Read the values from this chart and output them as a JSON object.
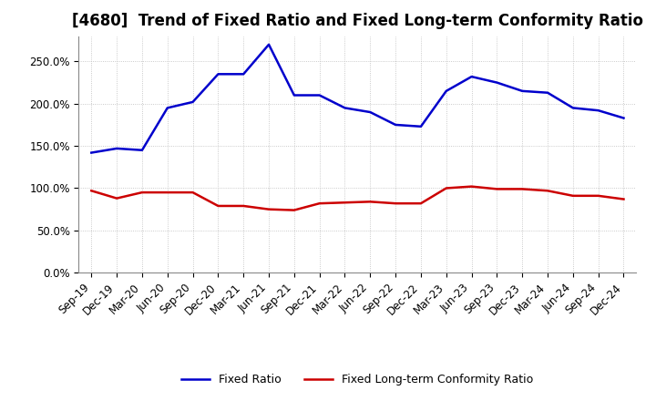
{
  "title": "[4680]  Trend of Fixed Ratio and Fixed Long-term Conformity Ratio",
  "labels": [
    "Sep-19",
    "Dec-19",
    "Mar-20",
    "Jun-20",
    "Sep-20",
    "Dec-20",
    "Mar-21",
    "Jun-21",
    "Sep-21",
    "Dec-21",
    "Mar-22",
    "Jun-22",
    "Sep-22",
    "Dec-22",
    "Mar-23",
    "Jun-23",
    "Sep-23",
    "Dec-23",
    "Mar-24",
    "Jun-24",
    "Sep-24",
    "Dec-24"
  ],
  "fixed_ratio": [
    142,
    147,
    145,
    195,
    202,
    235,
    235,
    270,
    210,
    210,
    195,
    190,
    175,
    173,
    215,
    232,
    225,
    215,
    213,
    195,
    192,
    183
  ],
  "fixed_lt_ratio": [
    97,
    88,
    95,
    95,
    95,
    79,
    79,
    75,
    74,
    82,
    83,
    84,
    82,
    82,
    100,
    102,
    99,
    99,
    97,
    91,
    91,
    87
  ],
  "fixed_ratio_color": "#0000cc",
  "fixed_lt_ratio_color": "#cc0000",
  "ylim_min": 0,
  "ylim_max": 280,
  "yticks": [
    0,
    50,
    100,
    150,
    200,
    250
  ],
  "legend_fixed": "Fixed Ratio",
  "legend_lt": "Fixed Long-term Conformity Ratio",
  "background_color": "#ffffff",
  "grid_color": "#bbbbbb",
  "title_fontsize": 12,
  "tick_fontsize": 8.5,
  "linewidth": 1.8
}
